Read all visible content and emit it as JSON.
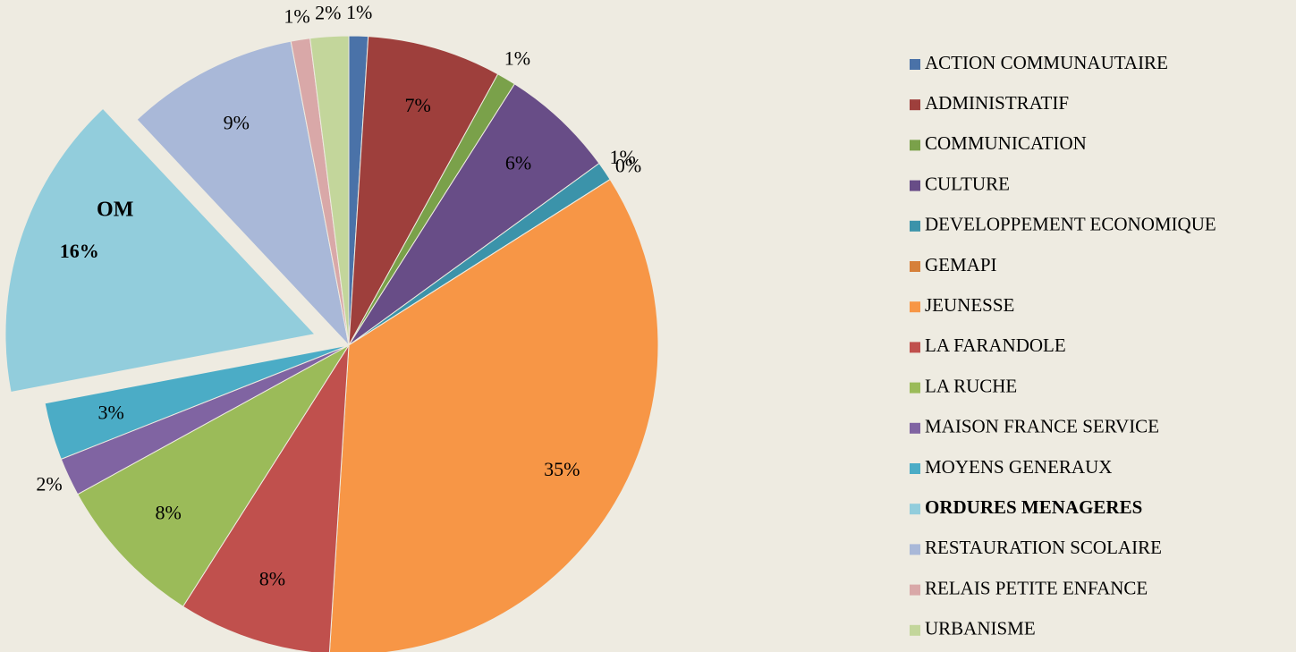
{
  "chart_data": {
    "type": "pie",
    "categories": [
      "ACTION COMMUNAUTAIRE",
      "ADMINISTRATIF",
      "COMMUNICATION",
      "CULTURE",
      "DEVELOPPEMENT ECONOMIQUE",
      "GEMAPI",
      "JEUNESSE",
      "LA FARANDOLE",
      "LA RUCHE",
      "MAISON FRANCE SERVICE",
      "MOYENS GENERAUX",
      "ORDURES MENAGERES",
      "RESTAURATION SCOLAIRE",
      "RELAIS PETITE ENFANCE",
      "URBANISME"
    ],
    "values": [
      1,
      7,
      1,
      6,
      1,
      0,
      35,
      8,
      8,
      2,
      3,
      16,
      9,
      1,
      2
    ],
    "value_labels": [
      "1%",
      "7%",
      "1%",
      "6%",
      "1%",
      "0%",
      "35%",
      "8%",
      "8%",
      "2%",
      "3%",
      "16%",
      "9%",
      "1%",
      "2%"
    ],
    "colors": [
      "#4a72a8",
      "#9e3f3c",
      "#7aa14a",
      "#684d87",
      "#3b93aa",
      "#d6803a",
      "#f79646",
      "#c0504d",
      "#9bbb59",
      "#8064a2",
      "#4bacc6",
      "#92cddc",
      "#a9b8d8",
      "#d9a8a8",
      "#c3d69b"
    ],
    "exploded": 11,
    "exploded_label": "OM",
    "legend": "right"
  }
}
